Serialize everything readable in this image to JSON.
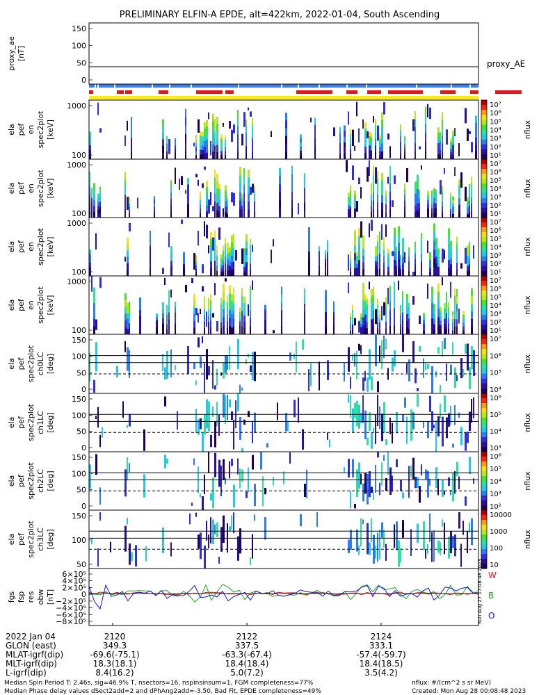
{
  "title": "PRELIMINARY ELFIN-A EPDE, alt=422km, 2022-01-04, South Ascending",
  "colors": {
    "status_blue": "#3a7ee8",
    "status_red": "#ee1111",
    "status_yellow": "#ffee00",
    "residual_W": "#ee1111",
    "residual_B": "#1aa81a",
    "residual_O": "#1111ee"
  },
  "colormap": [
    "#1e005a",
    "#2a0f9a",
    "#3030d8",
    "#2f7cf0",
    "#22c8e6",
    "#2ce0a0",
    "#4ae030",
    "#b4e81a",
    "#f0e020",
    "#ff9a14",
    "#f02a10",
    "#b00000"
  ],
  "panels": [
    {
      "id": "proxy_ae",
      "ylabel": [
        "proxy_ae",
        "[nT]"
      ],
      "ticks": [
        "150",
        "100",
        "50",
        "0"
      ],
      "right_label": "proxy_AE"
    },
    {
      "id": "en0",
      "ylabel": [
        "ela",
        "pef",
        "en",
        "spec2plot",
        "[keV]"
      ],
      "ticks": [
        "1000",
        "100"
      ],
      "cbar_ticks": [
        "10⁷",
        "10⁶",
        "10⁵",
        "10⁴",
        "10³",
        "10²",
        "10¹"
      ],
      "cbar_label": "nflux"
    },
    {
      "id": "en1",
      "ylabel": [
        "ela",
        "pef",
        "en",
        "spec2plot",
        "[keV]"
      ],
      "ticks": [
        "1000",
        "100"
      ],
      "cbar_ticks": [
        "10⁷",
        "10⁶",
        "10⁵",
        "10⁴",
        "10³",
        "10²",
        "10¹"
      ],
      "cbar_label": "nflux"
    },
    {
      "id": "en2",
      "ylabel": [
        "ela",
        "pef",
        "en",
        "spec2plot",
        "[keV]"
      ],
      "ticks": [
        "1000",
        "100"
      ],
      "cbar_ticks": [
        "10⁷",
        "10⁶",
        "10⁵",
        "10⁴",
        "10³",
        "10²",
        "10¹"
      ],
      "cbar_label": "nflux"
    },
    {
      "id": "en3",
      "ylabel": [
        "ela",
        "pef",
        "en",
        "spec2plot",
        "[keV]"
      ],
      "ticks": [
        "1000",
        "100"
      ],
      "cbar_ticks": [
        "10⁷",
        "10⁶",
        "10⁵",
        "10⁴",
        "10³",
        "10²",
        "10¹"
      ],
      "cbar_label": "nflux"
    },
    {
      "id": "pa0",
      "ylabel": [
        "ela",
        "pef",
        "spec2plot",
        "ch0LC",
        "[deg]"
      ],
      "ticks": [
        "150",
        "100",
        "50",
        "0"
      ],
      "cbar_ticks": [
        "10⁷",
        "10⁶",
        "10⁵",
        "10⁴"
      ],
      "cbar_label": "nflux"
    },
    {
      "id": "pa1",
      "ylabel": [
        "ela",
        "pef",
        "spec2plot",
        "ch1LC",
        "[deg]"
      ],
      "ticks": [
        "150",
        "100",
        "50",
        "0"
      ],
      "cbar_ticks": [
        "10⁶",
        "10⁵",
        "10⁴",
        "10³"
      ],
      "cbar_label": "nflux"
    },
    {
      "id": "pa2",
      "ylabel": [
        "ela",
        "pef",
        "spec2plot",
        "ch2LC",
        "[deg]"
      ],
      "ticks": [
        "150",
        "100",
        "50",
        "0"
      ],
      "cbar_ticks": [
        "10⁶",
        "10⁵",
        "10⁴",
        "10³",
        "10²"
      ],
      "cbar_label": "nflux"
    },
    {
      "id": "pa3",
      "ylabel": [
        "ela",
        "pef",
        "spec2plot",
        "ch3LC",
        "[deg]"
      ],
      "ticks": [
        "150",
        "100",
        "50"
      ],
      "cbar_ticks": [
        "10000",
        "1000",
        "100",
        "10"
      ],
      "cbar_label": "nflux"
    },
    {
      "id": "res",
      "ylabel": [
        "fgs",
        "fsp",
        "res",
        "obw",
        "[nT]"
      ],
      "ticks": [
        "6×10⁵",
        "4×10⁵",
        "2×10⁵",
        "0",
        "−2×10⁵",
        "−4×10⁵",
        "−6×10⁵",
        "−8×10⁵"
      ],
      "legend": [
        "W",
        "B",
        "O"
      ],
      "side_text": "Sun Aug 27 17:08:48 2023"
    }
  ],
  "bottom": {
    "rows": [
      {
        "label": "2022 Jan 04",
        "values": [
          "2120",
          "2122",
          "2124"
        ]
      },
      {
        "label": "GLON (east)",
        "values": [
          "349.3",
          "337.5",
          "333.1"
        ]
      },
      {
        "label": "MLAT-igrf(dip)",
        "values": [
          "-69.6(-75.1)",
          "-63.3(-67.4)",
          "-57.4(-59.7)"
        ]
      },
      {
        "label": "MLT-igrf(dip)",
        "values": [
          "18.3(18.1)",
          "18.4(18.4)",
          "18.4(18.5)"
        ]
      },
      {
        "label": "L-igrf(dip)",
        "values": [
          "8.4(16.2)",
          "5.0(7.2)",
          "3.5(4.2)"
        ]
      }
    ],
    "footer1": "Median Spin Period T: 2.46s, sig=46.9% T, nsectors=16, nspinsinsum=1, FGM completeness=77%",
    "footer2": "Median Phase delay values dSect2add=2 and dPhAng2add=-3.50, Bad Fit, EPDE completeness=49%",
    "footer_right1": "nflux: #/(cm^2 s sr MeV)",
    "footer_right2": "Created: Mon Aug 28 00:08:48 2023"
  }
}
